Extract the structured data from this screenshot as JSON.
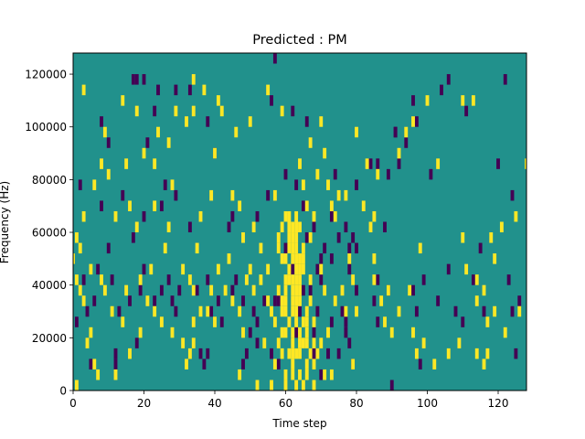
{
  "chart_data": {
    "type": "heatmap",
    "title": "Predicted : PM",
    "xlabel": "Time step",
    "ylabel": "Frequency (Hz)",
    "xlim": [
      0,
      128
    ],
    "ylim": [
      0,
      128000
    ],
    "x_ticks": [
      0,
      20,
      40,
      60,
      80,
      100,
      120
    ],
    "y_ticks": [
      0,
      20000,
      40000,
      60000,
      80000,
      100000,
      120000
    ],
    "y_tick_labels": [
      "0",
      "20000",
      "40000",
      "60000",
      "80000",
      "100000",
      "120000"
    ],
    "grid": false,
    "legend": "none",
    "cell_height_hz": 4000,
    "colors": {
      "background": "#21918c",
      "low": "#440154",
      "high": "#fde725"
    },
    "low_cells": [
      [
        17,
        116000
      ],
      [
        18,
        116000
      ],
      [
        20,
        116000
      ],
      [
        23,
        104000
      ],
      [
        24,
        112000
      ],
      [
        29,
        112000
      ],
      [
        33,
        112000
      ],
      [
        38,
        100000
      ],
      [
        40,
        88000
      ],
      [
        8,
        100000
      ],
      [
        10,
        92000
      ],
      [
        21,
        92000
      ],
      [
        2,
        76000
      ],
      [
        8,
        68000
      ],
      [
        25,
        68000
      ],
      [
        26,
        76000
      ],
      [
        29,
        72000
      ],
      [
        44,
        60000
      ],
      [
        52,
        64000
      ],
      [
        55,
        72000
      ],
      [
        56,
        108000
      ],
      [
        57,
        124000
      ],
      [
        60,
        80000
      ],
      [
        62,
        104000
      ],
      [
        63,
        76000
      ],
      [
        65,
        68000
      ],
      [
        66,
        100000
      ],
      [
        68,
        60000
      ],
      [
        69,
        44000
      ],
      [
        70,
        48000
      ],
      [
        71,
        52000
      ],
      [
        73,
        64000
      ],
      [
        75,
        56000
      ],
      [
        77,
        60000
      ],
      [
        78,
        52000
      ],
      [
        79,
        56000
      ],
      [
        80,
        52000
      ],
      [
        84,
        84000
      ],
      [
        86,
        84000
      ],
      [
        88,
        60000
      ],
      [
        92,
        84000
      ],
      [
        94,
        92000
      ],
      [
        91,
        96000
      ],
      [
        96,
        108000
      ],
      [
        97,
        100000
      ],
      [
        104,
        112000
      ],
      [
        106,
        116000
      ],
      [
        111,
        104000
      ],
      [
        120,
        84000
      ],
      [
        124,
        72000
      ],
      [
        122,
        116000
      ],
      [
        126,
        32000
      ],
      [
        124,
        28000
      ],
      [
        110,
        24000
      ],
      [
        113,
        40000
      ],
      [
        103,
        32000
      ],
      [
        106,
        44000
      ],
      [
        96,
        36000
      ],
      [
        89,
        36000
      ],
      [
        85,
        32000
      ],
      [
        86,
        40000
      ],
      [
        80,
        36000
      ],
      [
        78,
        44000
      ],
      [
        76,
        28000
      ],
      [
        77,
        20000
      ],
      [
        77,
        24000
      ],
      [
        78,
        16000
      ],
      [
        79,
        8000
      ],
      [
        70,
        4000
      ],
      [
        72,
        12000
      ],
      [
        73,
        24000
      ],
      [
        75,
        12000
      ],
      [
        69,
        28000
      ],
      [
        68,
        20000
      ],
      [
        65,
        36000
      ],
      [
        67,
        36000
      ],
      [
        62,
        44000
      ],
      [
        63,
        20000
      ],
      [
        64,
        28000
      ],
      [
        58,
        32000
      ],
      [
        57,
        32000
      ],
      [
        54,
        32000
      ],
      [
        52,
        24000
      ],
      [
        51,
        28000
      ],
      [
        50,
        20000
      ],
      [
        48,
        32000
      ],
      [
        46,
        40000
      ],
      [
        45,
        36000
      ],
      [
        42,
        24000
      ],
      [
        41,
        32000
      ],
      [
        39,
        28000
      ],
      [
        38,
        40000
      ],
      [
        37,
        8000
      ],
      [
        38,
        12000
      ],
      [
        36,
        12000
      ],
      [
        35,
        36000
      ],
      [
        29,
        28000
      ],
      [
        30,
        36000
      ],
      [
        27,
        40000
      ],
      [
        28,
        32000
      ],
      [
        25,
        36000
      ],
      [
        23,
        32000
      ],
      [
        19,
        36000
      ],
      [
        20,
        44000
      ],
      [
        16,
        32000
      ],
      [
        13,
        28000
      ],
      [
        11,
        40000
      ],
      [
        7,
        44000
      ],
      [
        6,
        32000
      ],
      [
        4,
        28000
      ],
      [
        3,
        40000
      ],
      [
        1,
        24000
      ],
      [
        5,
        8000
      ],
      [
        12,
        8000
      ],
      [
        12,
        12000
      ],
      [
        18,
        16000
      ],
      [
        49,
        12000
      ],
      [
        52,
        16000
      ],
      [
        58,
        8000
      ],
      [
        80,
        76000
      ],
      [
        86,
        24000
      ],
      [
        89,
        80000
      ],
      [
        91,
        96000
      ],
      [
        99,
        40000
      ],
      [
        101,
        80000
      ],
      [
        97,
        28000
      ],
      [
        108,
        28000
      ],
      [
        115,
        52000
      ],
      [
        116,
        28000
      ],
      [
        123,
        40000
      ],
      [
        125,
        12000
      ],
      [
        98,
        8000
      ],
      [
        90,
        0
      ],
      [
        56,
        12000
      ],
      [
        48,
        8000
      ],
      [
        68,
        12000
      ],
      [
        70,
        40000
      ],
      [
        74,
        80000
      ],
      [
        73,
        48000
      ],
      [
        66,
        56000
      ],
      [
        60,
        52000
      ],
      [
        45,
        64000
      ],
      [
        33,
        60000
      ],
      [
        20,
        64000
      ],
      [
        17,
        56000
      ],
      [
        10,
        52000
      ],
      [
        14,
        72000
      ]
    ],
    "high_cells": [
      [
        3,
        112000
      ],
      [
        9,
        96000
      ],
      [
        15,
        84000
      ],
      [
        16,
        68000
      ],
      [
        18,
        60000
      ],
      [
        23,
        68000
      ],
      [
        27,
        60000
      ],
      [
        29,
        104000
      ],
      [
        34,
        116000
      ],
      [
        34,
        104000
      ],
      [
        40,
        88000
      ],
      [
        42,
        104000
      ],
      [
        45,
        72000
      ],
      [
        47,
        68000
      ],
      [
        51,
        60000
      ],
      [
        57,
        72000
      ],
      [
        58,
        36000
      ],
      [
        59,
        48000
      ],
      [
        60,
        64000
      ],
      [
        61,
        60000
      ],
      [
        62,
        56000
      ],
      [
        63,
        48000
      ],
      [
        64,
        32000
      ],
      [
        62,
        28000
      ],
      [
        63,
        36000
      ],
      [
        60,
        20000
      ],
      [
        61,
        12000
      ],
      [
        62,
        8000
      ],
      [
        60,
        4000
      ],
      [
        62,
        20000
      ],
      [
        64,
        44000
      ],
      [
        66,
        28000
      ],
      [
        66,
        8000
      ],
      [
        64,
        60000
      ],
      [
        65,
        52000
      ],
      [
        65,
        76000
      ],
      [
        67,
        56000
      ],
      [
        68,
        64000
      ],
      [
        69,
        80000
      ],
      [
        70,
        100000
      ],
      [
        72,
        76000
      ],
      [
        74,
        64000
      ],
      [
        77,
        72000
      ],
      [
        78,
        48000
      ],
      [
        79,
        40000
      ],
      [
        80,
        96000
      ],
      [
        82,
        68000
      ],
      [
        84,
        60000
      ],
      [
        85,
        48000
      ],
      [
        86,
        80000
      ],
      [
        89,
        36000
      ],
      [
        92,
        88000
      ],
      [
        94,
        96000
      ],
      [
        96,
        100000
      ],
      [
        100,
        108000
      ],
      [
        103,
        84000
      ],
      [
        110,
        108000
      ],
      [
        113,
        108000
      ],
      [
        114,
        32000
      ],
      [
        116,
        36000
      ],
      [
        118,
        56000
      ],
      [
        119,
        48000
      ],
      [
        121,
        60000
      ],
      [
        125,
        64000
      ],
      [
        126,
        28000
      ],
      [
        128,
        84000
      ],
      [
        122,
        20000
      ],
      [
        117,
        24000
      ],
      [
        114,
        40000
      ],
      [
        114,
        12000
      ],
      [
        109,
        16000
      ],
      [
        106,
        12000
      ],
      [
        102,
        8000
      ],
      [
        92,
        28000
      ],
      [
        87,
        32000
      ],
      [
        85,
        40000
      ],
      [
        80,
        28000
      ],
      [
        76,
        36000
      ],
      [
        74,
        32000
      ],
      [
        71,
        36000
      ],
      [
        70,
        44000
      ],
      [
        67,
        40000
      ],
      [
        68,
        24000
      ],
      [
        72,
        20000
      ],
      [
        70,
        16000
      ],
      [
        73,
        4000
      ],
      [
        68,
        8000
      ],
      [
        61,
        24000
      ],
      [
        61,
        40000
      ],
      [
        58,
        52000
      ],
      [
        55,
        44000
      ],
      [
        53,
        40000
      ],
      [
        51,
        36000
      ],
      [
        50,
        44000
      ],
      [
        49,
        40000
      ],
      [
        47,
        28000
      ],
      [
        48,
        20000
      ],
      [
        45,
        32000
      ],
      [
        43,
        36000
      ],
      [
        41,
        44000
      ],
      [
        39,
        36000
      ],
      [
        40,
        24000
      ],
      [
        38,
        28000
      ],
      [
        36,
        28000
      ],
      [
        34,
        36000
      ],
      [
        34,
        24000
      ],
      [
        33,
        40000
      ],
      [
        31,
        44000
      ],
      [
        32,
        8000
      ],
      [
        33,
        12000
      ],
      [
        34,
        16000
      ],
      [
        31,
        16000
      ],
      [
        28,
        20000
      ],
      [
        25,
        24000
      ],
      [
        23,
        28000
      ],
      [
        21,
        32000
      ],
      [
        19,
        40000
      ],
      [
        15,
        36000
      ],
      [
        14,
        24000
      ],
      [
        11,
        28000
      ],
      [
        9,
        36000
      ],
      [
        8,
        40000
      ],
      [
        5,
        44000
      ],
      [
        3,
        32000
      ],
      [
        2,
        36000
      ],
      [
        1,
        40000
      ],
      [
        4,
        16000
      ],
      [
        7,
        4000
      ],
      [
        1,
        0
      ],
      [
        10,
        80000
      ],
      [
        12,
        64000
      ],
      [
        20,
        88000
      ],
      [
        23,
        84000
      ],
      [
        28,
        76000
      ],
      [
        36,
        64000
      ],
      [
        35,
        52000
      ],
      [
        44,
        48000
      ],
      [
        48,
        56000
      ],
      [
        53,
        52000
      ],
      [
        55,
        32000
      ],
      [
        56,
        28000
      ],
      [
        57,
        24000
      ],
      [
        59,
        12000
      ],
      [
        60,
        0
      ],
      [
        64,
        4000
      ],
      [
        66,
        4000
      ],
      [
        71,
        4000
      ],
      [
        65,
        16000
      ],
      [
        64,
        16000
      ],
      [
        60,
        40000
      ],
      [
        62,
        32000
      ],
      [
        63,
        12000
      ],
      [
        60,
        28000
      ],
      [
        62,
        4000
      ],
      [
        63,
        24000
      ],
      [
        58,
        56000
      ],
      [
        59,
        60000
      ],
      [
        61,
        64000
      ],
      [
        66,
        68000
      ],
      [
        65,
        48000
      ],
      [
        63,
        56000
      ],
      [
        61,
        44000
      ],
      [
        59,
        32000
      ],
      [
        96,
        20000
      ],
      [
        99,
        16000
      ],
      [
        97,
        12000
      ],
      [
        79,
        8000
      ],
      [
        77,
        28000
      ],
      [
        119,
        28000
      ],
      [
        117,
        12000
      ],
      [
        116,
        8000
      ],
      [
        111,
        44000
      ],
      [
        110,
        56000
      ],
      [
        98,
        52000
      ],
      [
        95,
        36000
      ],
      [
        90,
        20000
      ],
      [
        88,
        24000
      ],
      [
        85,
        64000
      ],
      [
        83,
        84000
      ],
      [
        75,
        72000
      ],
      [
        73,
        68000
      ],
      [
        71,
        88000
      ],
      [
        67,
        92000
      ],
      [
        64,
        84000
      ],
      [
        59,
        104000
      ],
      [
        55,
        112000
      ],
      [
        50,
        100000
      ],
      [
        46,
        96000
      ],
      [
        41,
        108000
      ],
      [
        37,
        112000
      ],
      [
        32,
        100000
      ],
      [
        27,
        92000
      ],
      [
        24,
        96000
      ],
      [
        18,
        104000
      ],
      [
        14,
        108000
      ],
      [
        8,
        84000
      ],
      [
        6,
        76000
      ],
      [
        3,
        64000
      ],
      [
        2,
        52000
      ],
      [
        0,
        48000
      ],
      [
        1,
        56000
      ],
      [
        39,
        72000
      ],
      [
        26,
        52000
      ],
      [
        22,
        44000
      ],
      [
        19,
        20000
      ],
      [
        16,
        12000
      ],
      [
        12,
        4000
      ],
      [
        5,
        20000
      ],
      [
        6,
        8000
      ],
      [
        47,
        4000
      ],
      [
        52,
        0
      ],
      [
        54,
        16000
      ],
      [
        56,
        0
      ],
      [
        57,
        8000
      ],
      [
        58,
        16000
      ],
      [
        59,
        20000
      ],
      [
        59,
        28000
      ],
      [
        60,
        32000
      ],
      [
        60,
        36000
      ],
      [
        60,
        48000
      ],
      [
        61,
        52000
      ],
      [
        61,
        56000
      ],
      [
        62,
        12000
      ],
      [
        62,
        16000
      ],
      [
        62,
        36000
      ],
      [
        62,
        40000
      ],
      [
        62,
        48000
      ],
      [
        62,
        52000
      ],
      [
        62,
        60000
      ],
      [
        63,
        0
      ],
      [
        63,
        28000
      ],
      [
        63,
        32000
      ],
      [
        63,
        40000
      ],
      [
        63,
        44000
      ],
      [
        63,
        52000
      ],
      [
        63,
        60000
      ],
      [
        63,
        64000
      ],
      [
        64,
        12000
      ],
      [
        64,
        20000
      ],
      [
        64,
        36000
      ],
      [
        64,
        40000
      ],
      [
        64,
        48000
      ],
      [
        65,
        0
      ],
      [
        65,
        24000
      ],
      [
        65,
        44000
      ],
      [
        66,
        16000
      ],
      [
        66,
        20000
      ],
      [
        66,
        24000
      ],
      [
        67,
        12000
      ],
      [
        67,
        32000
      ],
      [
        68,
        0
      ],
      [
        68,
        16000
      ],
      [
        69,
        12000
      ]
    ]
  }
}
